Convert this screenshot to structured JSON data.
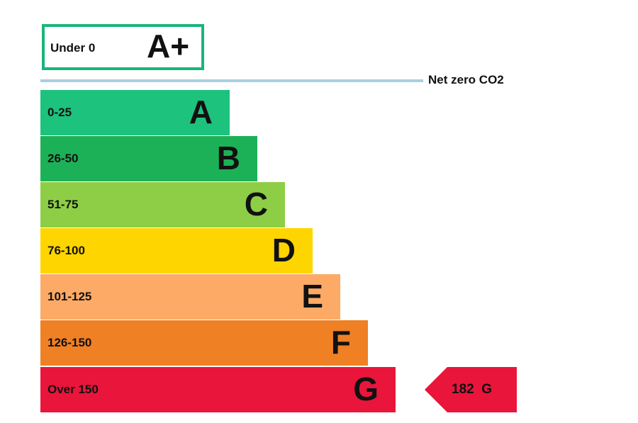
{
  "top_band": {
    "range": "Under 0",
    "letter": "A+",
    "border_color": "#19b57a"
  },
  "net_zero": {
    "label": "Net zero CO2",
    "line_color": "#a9cfe0"
  },
  "bands": [
    {
      "range": "0-25",
      "letter": "A",
      "color": "#1dc27d"
    },
    {
      "range": "26-50",
      "letter": "B",
      "color": "#1db157"
    },
    {
      "range": "51-75",
      "letter": "C",
      "color": "#8dce46"
    },
    {
      "range": "76-100",
      "letter": "D",
      "color": "#ffd500"
    },
    {
      "range": "101-125",
      "letter": "E",
      "color": "#fcaa65"
    },
    {
      "range": "126-150",
      "letter": "F",
      "color": "#ef8023"
    },
    {
      "range": "Over 150",
      "letter": "G",
      "color": "#e9153b"
    }
  ],
  "current_rating": {
    "value": "182",
    "letter": "G",
    "color": "#e9153b"
  }
}
